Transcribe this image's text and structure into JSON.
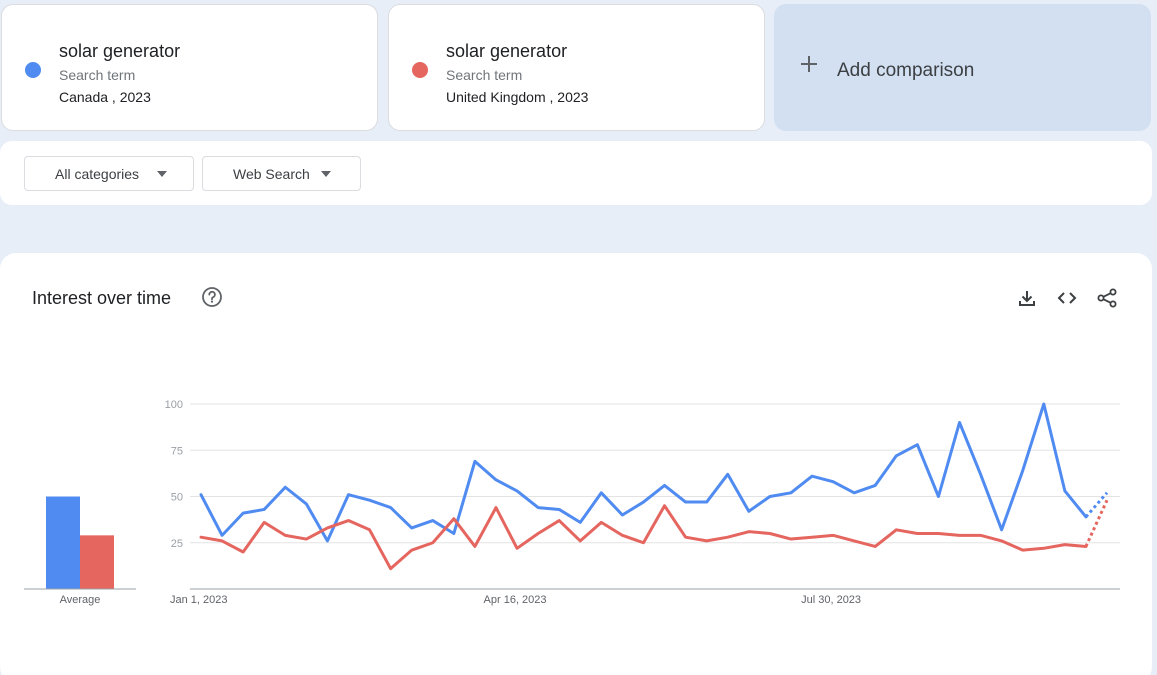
{
  "terms": [
    {
      "title": "solar generator",
      "subtitle": "Search term",
      "region": "Canada , 2023",
      "color": "#4f8bf0"
    },
    {
      "title": "solar generator",
      "subtitle": "Search term",
      "region": "United Kingdom , 2023",
      "color": "#e5655f"
    }
  ],
  "add_comparison": {
    "icon": "plus-icon",
    "label": "Add comparison"
  },
  "filters": {
    "category": "All categories",
    "search_type": "Web Search"
  },
  "chart_section": {
    "title": "Interest over time",
    "icons": [
      "help-icon",
      "download-icon",
      "embed-icon",
      "share-icon"
    ]
  },
  "chart_data": {
    "type": "line",
    "yticks": [
      100,
      75,
      50,
      25
    ],
    "ylim": [
      0,
      100
    ],
    "xtick_labels": [
      {
        "label": "Jan 1, 2023",
        "index": 0
      },
      {
        "label": "Apr 16, 2023",
        "index": 15
      },
      {
        "label": "Jul 30, 2023",
        "index": 30
      }
    ],
    "average": {
      "label": "Average",
      "values": [
        50,
        29
      ]
    },
    "series": [
      {
        "color": "#4f8bf0",
        "values": [
          51,
          29,
          41,
          43,
          55,
          46,
          26,
          51,
          48,
          44,
          33,
          37,
          30,
          69,
          59,
          53,
          44,
          43,
          36,
          52,
          40,
          47,
          56,
          47,
          47,
          62,
          42,
          50,
          52,
          61,
          58,
          52,
          56,
          72,
          78,
          50,
          90,
          62,
          32,
          64,
          100,
          53,
          39,
          52
        ]
      },
      {
        "color": "#e5655f",
        "values": [
          28,
          26,
          20,
          36,
          29,
          27,
          33,
          37,
          32,
          11,
          21,
          25,
          38,
          23,
          44,
          22,
          30,
          37,
          26,
          36,
          29,
          25,
          45,
          28,
          26,
          28,
          31,
          30,
          27,
          28,
          29,
          26,
          23,
          32,
          30,
          30,
          29,
          29,
          26,
          21,
          22,
          24,
          23,
          48
        ]
      }
    ],
    "partial_last_point": true,
    "grid": true
  }
}
